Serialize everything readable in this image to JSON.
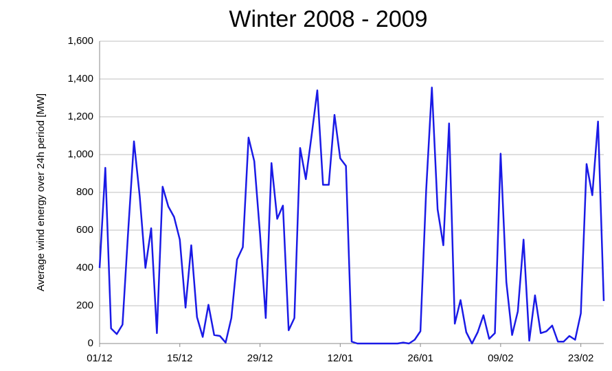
{
  "chart_data": {
    "type": "line",
    "title": "Winter 2008 - 2009",
    "y_label": "Average wind energy over 24h period [MW]",
    "color": "#1a1ae6",
    "grid": true,
    "categories": [
      "01/12",
      null,
      null,
      null,
      null,
      null,
      null,
      null,
      null,
      null,
      null,
      null,
      null,
      null,
      "15/12",
      null,
      null,
      null,
      null,
      null,
      null,
      null,
      null,
      null,
      null,
      null,
      null,
      null,
      "29/12",
      null,
      null,
      null,
      null,
      null,
      null,
      null,
      null,
      null,
      null,
      null,
      null,
      null,
      "12/01",
      null,
      null,
      null,
      null,
      null,
      null,
      null,
      null,
      null,
      null,
      null,
      null,
      null,
      "26/01",
      null,
      null,
      null,
      null,
      null,
      null,
      null,
      null,
      null,
      null,
      null,
      null,
      null,
      "09/02",
      null,
      null,
      null,
      null,
      null,
      null,
      null,
      null,
      null,
      null,
      null,
      null,
      null,
      "23/02",
      null,
      null,
      null,
      null
    ],
    "values": [
      400,
      930,
      80,
      50,
      100,
      600,
      1070,
      780,
      400,
      610,
      55,
      830,
      725,
      670,
      550,
      190,
      520,
      140,
      35,
      205,
      45,
      40,
      5,
      135,
      445,
      510,
      1090,
      965,
      580,
      135,
      955,
      660,
      730,
      70,
      135,
      1035,
      870,
      1100,
      1340,
      840,
      840,
      1210,
      980,
      940,
      10,
      0,
      0,
      0,
      0,
      0,
      0,
      0,
      0,
      5,
      0,
      20,
      65,
      810,
      1355,
      710,
      520,
      1165,
      105,
      230,
      60,
      0,
      60,
      150,
      25,
      55,
      1005,
      325,
      45,
      170,
      550,
      15,
      255,
      55,
      65,
      95,
      10,
      10,
      40,
      20,
      160,
      950,
      785,
      1175,
      225
    ],
    "ylim": [
      0,
      1600
    ],
    "yticks": [
      0,
      200,
      400,
      600,
      800,
      {
        "value": 1000,
        "label": "1,000"
      },
      {
        "value": 1200,
        "label": "1,200"
      },
      {
        "value": 1400,
        "label": "1,400"
      },
      {
        "value": 1600,
        "label": "1,600"
      }
    ]
  }
}
